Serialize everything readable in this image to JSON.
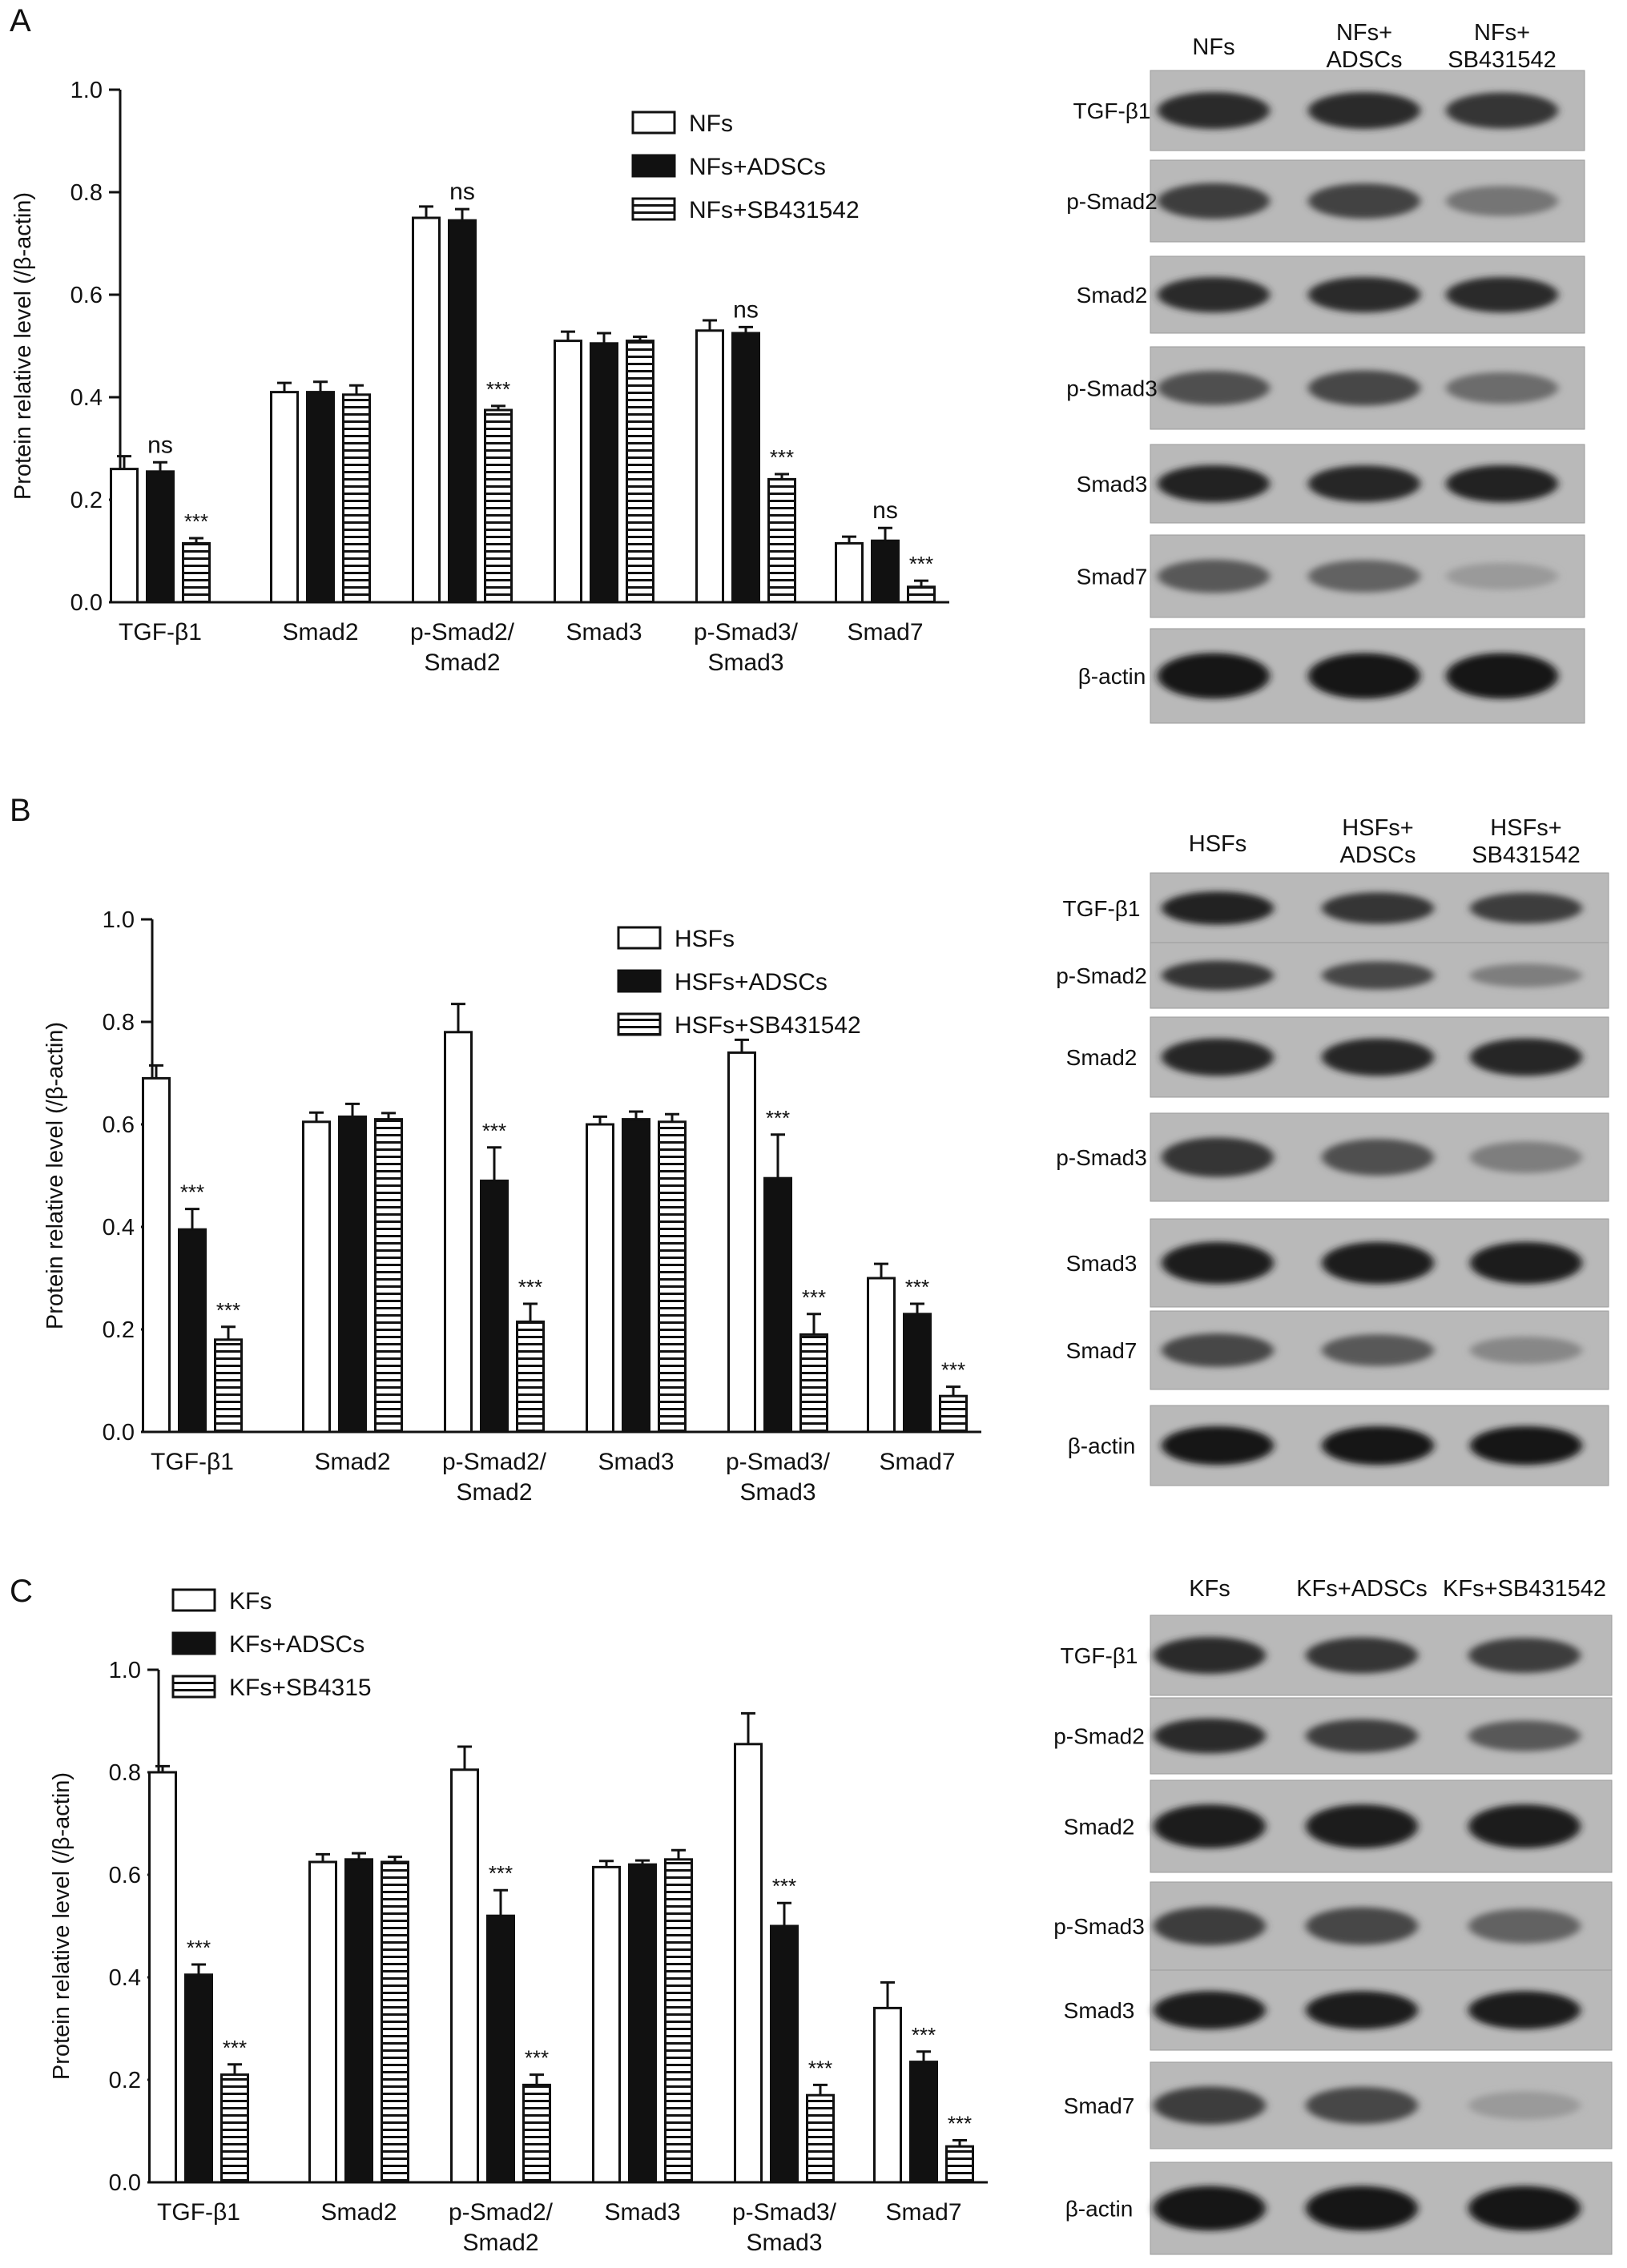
{
  "panels": [
    {
      "letter": "A",
      "chart_data": {
        "type": "bar",
        "ylabel": "Protein relative level (/β-actin)",
        "ylim": [
          0,
          1.0
        ],
        "yticks": [
          "0.0",
          "0.2",
          "0.4",
          "0.6",
          "0.8",
          "1.0"
        ],
        "categories": [
          "TGF-β1",
          "Smad2",
          "p-Smad2/\nSmad2",
          "Smad3",
          "p-Smad3/\nSmad3",
          "Smad7"
        ],
        "legend_position": "top-center",
        "series": [
          {
            "name": "NFs",
            "style": "open",
            "values": [
              0.26,
              0.41,
              0.75,
              0.51,
              0.53,
              0.115
            ],
            "errors": [
              0.025,
              0.018,
              0.022,
              0.018,
              0.02,
              0.013
            ]
          },
          {
            "name": "NFs+ADSCs",
            "style": "solid",
            "values": [
              0.255,
              0.41,
              0.745,
              0.505,
              0.525,
              0.12
            ],
            "errors": [
              0.018,
              0.02,
              0.022,
              0.02,
              0.012,
              0.025
            ]
          },
          {
            "name": "NFs+SB431542",
            "style": "striped",
            "values": [
              0.115,
              0.405,
              0.375,
              0.51,
              0.24,
              0.03
            ],
            "errors": [
              0.01,
              0.018,
              0.008,
              0.008,
              0.01,
              0.012
            ]
          }
        ],
        "annotations": [
          {
            "category": 0,
            "series": 1,
            "text": "ns"
          },
          {
            "category": 0,
            "series": 2,
            "text": "***"
          },
          {
            "category": 2,
            "series": 1,
            "text": "ns"
          },
          {
            "category": 2,
            "series": 2,
            "text": "***"
          },
          {
            "category": 4,
            "series": 1,
            "text": "ns"
          },
          {
            "category": 4,
            "series": 2,
            "text": "***"
          },
          {
            "category": 5,
            "series": 1,
            "text": "ns"
          },
          {
            "category": 5,
            "series": 2,
            "text": "***"
          }
        ]
      },
      "blot": {
        "lanes": [
          [
            "NFs"
          ],
          [
            "NFs+",
            "ADSCs"
          ],
          [
            "NFs+",
            "SB431542"
          ]
        ],
        "rows": [
          {
            "label": "TGF-β1",
            "intensity": [
              0.85,
              0.85,
              0.8
            ]
          },
          {
            "label": "p-Smad2",
            "intensity": [
              0.75,
              0.72,
              0.45
            ]
          },
          {
            "label": "Smad2",
            "intensity": [
              0.85,
              0.85,
              0.85
            ]
          },
          {
            "label": "p-Smad3",
            "intensity": [
              0.65,
              0.7,
              0.5
            ]
          },
          {
            "label": "Smad3",
            "intensity": [
              0.9,
              0.88,
              0.9
            ]
          },
          {
            "label": "Smad7",
            "intensity": [
              0.6,
              0.55,
              0.25
            ]
          },
          {
            "label": "β-actin",
            "intensity": [
              0.95,
              0.95,
              0.95
            ]
          }
        ]
      }
    },
    {
      "letter": "B",
      "chart_data": {
        "type": "bar",
        "ylabel": "Protein relative level (/β-actin)",
        "ylim": [
          0,
          1.0
        ],
        "yticks": [
          "0.0",
          "0.2",
          "0.4",
          "0.6",
          "0.8",
          "1.0"
        ],
        "categories": [
          "TGF-β1",
          "Smad2",
          "p-Smad2/\nSmad2",
          "Smad3",
          "p-Smad3/\nSmad3",
          "Smad7"
        ],
        "legend_position": "top-center",
        "series": [
          {
            "name": "HSFs",
            "style": "open",
            "values": [
              0.69,
              0.605,
              0.78,
              0.6,
              0.74,
              0.3
            ],
            "errors": [
              0.025,
              0.018,
              0.055,
              0.015,
              0.025,
              0.028
            ]
          },
          {
            "name": "HSFs+ADSCs",
            "style": "solid",
            "values": [
              0.395,
              0.615,
              0.49,
              0.61,
              0.495,
              0.23
            ],
            "errors": [
              0.04,
              0.025,
              0.065,
              0.015,
              0.085,
              0.02
            ]
          },
          {
            "name": "HSFs+SB431542",
            "style": "striped",
            "values": [
              0.18,
              0.61,
              0.215,
              0.605,
              0.19,
              0.07
            ],
            "errors": [
              0.025,
              0.012,
              0.035,
              0.015,
              0.04,
              0.018
            ]
          }
        ],
        "annotations": [
          {
            "category": 0,
            "series": 1,
            "text": "***"
          },
          {
            "category": 0,
            "series": 2,
            "text": "***"
          },
          {
            "category": 2,
            "series": 1,
            "text": "***"
          },
          {
            "category": 2,
            "series": 2,
            "text": "***"
          },
          {
            "category": 4,
            "series": 1,
            "text": "***"
          },
          {
            "category": 4,
            "series": 2,
            "text": "***"
          },
          {
            "category": 5,
            "series": 1,
            "text": "***"
          },
          {
            "category": 5,
            "series": 2,
            "text": "***"
          }
        ]
      },
      "blot": {
        "lanes": [
          [
            "HSFs"
          ],
          [
            "HSFs+",
            "ADSCs"
          ],
          [
            "HSFs+",
            "SB431542"
          ]
        ],
        "rows": [
          {
            "label": "TGF-β1",
            "intensity": [
              0.9,
              0.8,
              0.75
            ]
          },
          {
            "label": "p-Smad2",
            "intensity": [
              0.8,
              0.7,
              0.4
            ]
          },
          {
            "label": "Smad2",
            "intensity": [
              0.88,
              0.88,
              0.88
            ]
          },
          {
            "label": "p-Smad3",
            "intensity": [
              0.8,
              0.65,
              0.4
            ]
          },
          {
            "label": "Smad3",
            "intensity": [
              0.92,
              0.92,
              0.92
            ]
          },
          {
            "label": "Smad7",
            "intensity": [
              0.7,
              0.6,
              0.35
            ]
          },
          {
            "label": "β-actin",
            "intensity": [
              0.95,
              0.95,
              0.95
            ]
          }
        ]
      }
    },
    {
      "letter": "C",
      "chart_data": {
        "type": "bar",
        "ylabel": "Protein relative level (/β-actin)",
        "ylim": [
          0,
          1.0
        ],
        "yticks": [
          "0.0",
          "0.2",
          "0.4",
          "0.6",
          "0.8",
          "1.0"
        ],
        "categories": [
          "TGF-β1",
          "Smad2",
          "p-Smad2/\nSmad2",
          "Smad3",
          "p-Smad3/\nSmad3",
          "Smad7"
        ],
        "legend_position": "top-left",
        "series": [
          {
            "name": "KFs",
            "style": "open",
            "values": [
              0.8,
              0.625,
              0.805,
              0.615,
              0.855,
              0.34
            ],
            "errors": [
              0.012,
              0.015,
              0.045,
              0.012,
              0.06,
              0.05
            ]
          },
          {
            "name": "KFs+ADSCs",
            "style": "solid",
            "values": [
              0.405,
              0.63,
              0.52,
              0.62,
              0.5,
              0.235
            ],
            "errors": [
              0.02,
              0.012,
              0.05,
              0.008,
              0.045,
              0.02
            ]
          },
          {
            "name": "KFs+SB4315",
            "style": "striped",
            "values": [
              0.21,
              0.625,
              0.19,
              0.63,
              0.17,
              0.07
            ],
            "errors": [
              0.02,
              0.01,
              0.02,
              0.018,
              0.02,
              0.012
            ]
          }
        ],
        "annotations": [
          {
            "category": 0,
            "series": 1,
            "text": "***"
          },
          {
            "category": 0,
            "series": 2,
            "text": "***"
          },
          {
            "category": 2,
            "series": 1,
            "text": "***"
          },
          {
            "category": 2,
            "series": 2,
            "text": "***"
          },
          {
            "category": 4,
            "series": 1,
            "text": "***"
          },
          {
            "category": 4,
            "series": 2,
            "text": "***"
          },
          {
            "category": 5,
            "series": 1,
            "text": "***"
          },
          {
            "category": 5,
            "series": 2,
            "text": "***"
          }
        ]
      },
      "blot": {
        "lanes": [
          [
            "KFs"
          ],
          [
            "KFs+ADSCs"
          ],
          [
            "KFs+SB431542"
          ]
        ],
        "rows": [
          {
            "label": "TGF-β1",
            "intensity": [
              0.85,
              0.8,
              0.75
            ]
          },
          {
            "label": "p-Smad2",
            "intensity": [
              0.85,
              0.75,
              0.6
            ]
          },
          {
            "label": "Smad2",
            "intensity": [
              0.92,
              0.92,
              0.92
            ]
          },
          {
            "label": "p-Smad3",
            "intensity": [
              0.75,
              0.7,
              0.55
            ]
          },
          {
            "label": "Smad3",
            "intensity": [
              0.92,
              0.92,
              0.92
            ]
          },
          {
            "label": "Smad7",
            "intensity": [
              0.75,
              0.7,
              0.25
            ]
          },
          {
            "label": "β-actin",
            "intensity": [
              0.95,
              0.95,
              0.95
            ]
          }
        ]
      }
    }
  ]
}
